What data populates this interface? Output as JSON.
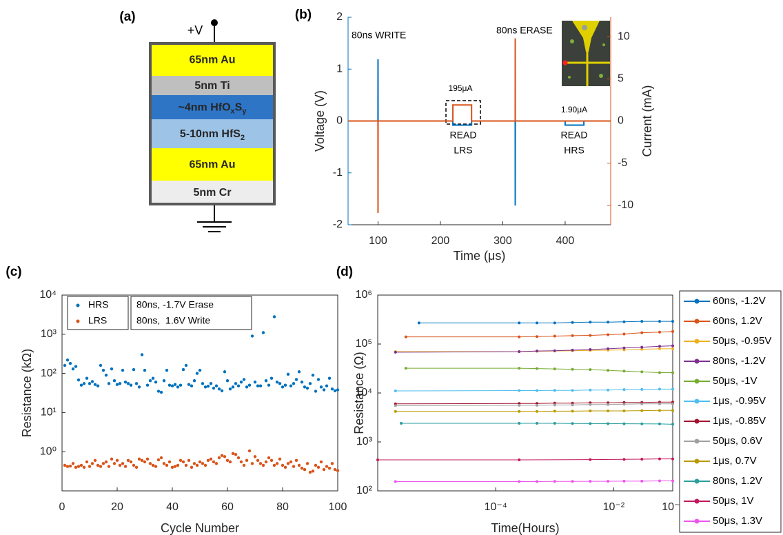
{
  "diagram": {
    "panel_label": "(a)",
    "terminal": "+V",
    "layers": [
      {
        "label": "65nm Au",
        "color": "#ffff00",
        "text_color": "#000000"
      },
      {
        "label": "5nm Ti",
        "color": "#bfbfbf",
        "text_color": "#000000"
      },
      {
        "label": [
          "~4nm HfO",
          "x",
          "S",
          "y"
        ],
        "color": "#2e75c6",
        "text_color": "#ffffff"
      },
      {
        "label": [
          "5-10nm HfS",
          "2"
        ],
        "color": "#9dc3e6",
        "text_color": "#000000"
      },
      {
        "label": "65nm Au",
        "color": "#ffff00",
        "text_color": "#000000"
      },
      {
        "label": "5nm Cr",
        "color": "#ededed",
        "text_color": "#000000"
      }
    ]
  },
  "chart_data": [
    {
      "type": "line",
      "panel_label": "(b)",
      "x_label": "Time (μs)",
      "y_label": "Voltage (V)",
      "y2_label": "Current (mA)",
      "xlim": [
        52,
        473
      ],
      "xticks": [
        100,
        200,
        300,
        400
      ],
      "ylim": [
        -2,
        2
      ],
      "yticks": [
        -2,
        -1,
        0,
        1,
        2
      ],
      "y2lim": [
        -12.3,
        12.3
      ],
      "y2ticks": [
        -10,
        -5,
        0,
        5,
        10
      ],
      "series": [
        {
          "color": "#0072bd",
          "axis": "y",
          "x": [
            52,
            99.9,
            100,
            100.1,
            220,
            220,
            250,
            250,
            319.9,
            320,
            320.1,
            400,
            400,
            430,
            430,
            473
          ],
          "values": [
            0,
            0,
            1.19,
            0,
            0,
            -0.08,
            -0.08,
            0,
            0,
            -1.63,
            0,
            0,
            -0.08,
            -0.08,
            0,
            0
          ]
        },
        {
          "color": "#d95319",
          "axis": "y2",
          "x": [
            52,
            99.9,
            100,
            100.1,
            220,
            220,
            250,
            250,
            319.9,
            320,
            320.1,
            473
          ],
          "values": [
            0,
            0,
            -10.9,
            0,
            0,
            1.9,
            1.9,
            0,
            0,
            9.8,
            0,
            0
          ]
        }
      ],
      "annotations": [
        "80ns WRITE",
        "80ns ERASE",
        "195μA",
        "READ",
        "LRS",
        "1.90μA",
        "READ",
        "HRS"
      ]
    },
    {
      "type": "scatter",
      "panel_label": "(c)",
      "x_label": "Cycle Number",
      "y_label": "Resistance (kΩ)",
      "xlim": [
        0,
        100
      ],
      "xticks": [
        0,
        20,
        40,
        60,
        80,
        100
      ],
      "ylog": true,
      "ylim": [
        0.1,
        10000
      ],
      "yticks": [
        {
          "value": 1,
          "label": "10⁰"
        },
        {
          "value": 10,
          "label": "10¹"
        },
        {
          "value": 100,
          "label": "10²"
        },
        {
          "value": 1000,
          "label": "10³"
        },
        {
          "value": 10000,
          "label": "10⁴"
        }
      ],
      "x": [
        1,
        2,
        3,
        4,
        5,
        6,
        7,
        8,
        9,
        10,
        11,
        12,
        13,
        14,
        15,
        16,
        17,
        18,
        19,
        20,
        21,
        22,
        23,
        24,
        25,
        26,
        27,
        28,
        29,
        30,
        31,
        32,
        33,
        34,
        35,
        36,
        37,
        38,
        39,
        40,
        41,
        42,
        43,
        44,
        45,
        46,
        47,
        48,
        49,
        50,
        51,
        52,
        53,
        54,
        55,
        56,
        57,
        58,
        59,
        60,
        61,
        62,
        63,
        64,
        65,
        66,
        67,
        68,
        69,
        70,
        71,
        72,
        73,
        74,
        75,
        76,
        77,
        78,
        79,
        80,
        81,
        82,
        83,
        84,
        85,
        86,
        87,
        88,
        89,
        90,
        91,
        92,
        93,
        94,
        95,
        96,
        97,
        98,
        99,
        100
      ],
      "series": [
        {
          "name": "HRS",
          "color": "#0072bd",
          "values": [
            160,
            220,
            180,
            130,
            150,
            68,
            50,
            55,
            75,
            55,
            62,
            52,
            48,
            160,
            120,
            90,
            55,
            130,
            65,
            52,
            55,
            120,
            60,
            55,
            50,
            125,
            55,
            45,
            300,
            120,
            50,
            65,
            75,
            60,
            35,
            33,
            65,
            120,
            50,
            48,
            52,
            45,
            50,
            125,
            160,
            52,
            48,
            65,
            100,
            120,
            55,
            45,
            47,
            55,
            42,
            48,
            40,
            36,
            110,
            65,
            40,
            45,
            55,
            48,
            60,
            70,
            45,
            50,
            900,
            60,
            48,
            48,
            1100,
            65,
            50,
            75,
            2800,
            60,
            55,
            45,
            50,
            95,
            48,
            55,
            70,
            110,
            60,
            45,
            42,
            55,
            90,
            35,
            70,
            45,
            38,
            48,
            75,
            40,
            36,
            38
          ]
        },
        {
          "name": "LRS",
          "color": "#d95319",
          "values": [
            0.45,
            0.42,
            0.43,
            0.5,
            0.4,
            0.42,
            0.45,
            0.4,
            0.55,
            0.42,
            0.5,
            0.6,
            0.45,
            0.42,
            0.5,
            0.55,
            0.42,
            0.65,
            0.5,
            0.6,
            0.45,
            0.5,
            0.42,
            0.6,
            0.55,
            0.45,
            0.4,
            0.65,
            0.6,
            0.55,
            0.65,
            0.5,
            0.45,
            0.42,
            0.62,
            0.7,
            0.5,
            0.45,
            0.55,
            0.4,
            0.42,
            0.45,
            0.6,
            0.55,
            0.45,
            0.6,
            0.4,
            0.5,
            0.45,
            0.55,
            0.5,
            0.45,
            0.6,
            0.65,
            0.55,
            0.5,
            0.7,
            0.8,
            0.75,
            0.6,
            0.55,
            0.9,
            0.85,
            0.7,
            0.55,
            0.45,
            0.6,
            1.05,
            0.5,
            0.75,
            0.6,
            0.5,
            0.45,
            0.55,
            0.7,
            0.6,
            0.45,
            0.5,
            0.65,
            0.45,
            0.4,
            0.5,
            0.55,
            0.42,
            0.6,
            0.45,
            0.38,
            0.35,
            0.5,
            0.3,
            0.32,
            0.45,
            0.4,
            0.55,
            0.35,
            0.42,
            0.38,
            0.5,
            0.35,
            0.33
          ]
        }
      ],
      "annotations": [
        "80ns, -1.7V Erase",
        "80ns,  1.6V Write"
      ]
    },
    {
      "type": "line",
      "panel_label": "(d)",
      "x_label": "Time(Hours)",
      "y_label": "Resistance (Ω)",
      "xlog": true,
      "xlim": [
        1e-06,
        0.1
      ],
      "xticks": [
        {
          "value": 0.0001,
          "label": "10⁻⁴"
        },
        {
          "value": 0.01,
          "label": "10⁻²"
        },
        {
          "value": 0.1,
          "label": "10⁻¹"
        }
      ],
      "ylog": true,
      "ylim": [
        100,
        1000000
      ],
      "yticks": [
        {
          "value": 100,
          "label": "10²"
        },
        {
          "value": 1000,
          "label": "10³"
        },
        {
          "value": 10000,
          "label": "10⁴"
        },
        {
          "value": 100000,
          "label": "10⁵"
        },
        {
          "value": 1000000,
          "label": "10⁶"
        }
      ],
      "series": [
        {
          "name": "60ns, -1.2V",
          "color": "#0072bd",
          "x": [
            5e-06,
            0.00025,
            0.0005,
            0.001,
            0.002,
            0.004,
            0.008,
            0.015,
            0.03,
            0.06,
            0.1
          ],
          "values": [
            270000,
            270000,
            270000,
            270000,
            275000,
            280000,
            280000,
            285000,
            290000,
            290000,
            290000
          ]
        },
        {
          "name": "60ns, 1.2V",
          "color": "#d95319",
          "x": [
            3e-06,
            0.00025,
            0.0005,
            0.001,
            0.002,
            0.004,
            0.008,
            0.015,
            0.03,
            0.06,
            0.1
          ],
          "values": [
            140000,
            140000,
            142000,
            145000,
            148000,
            150000,
            155000,
            160000,
            170000,
            175000,
            180000
          ]
        },
        {
          "name": "50μs, -0.95V",
          "color": "#edb120",
          "x": [
            2e-06,
            0.00025,
            0.0005,
            0.001,
            0.002,
            0.004,
            0.008,
            0.015,
            0.03,
            0.06,
            0.1
          ],
          "values": [
            70000,
            70000,
            71000,
            72000,
            73000,
            74000,
            75000,
            76000,
            78000,
            80000,
            80000
          ]
        },
        {
          "name": "80ns, -1.2V",
          "color": "#7e2f8e",
          "x": [
            2e-06,
            0.00025,
            0.0005,
            0.001,
            0.002,
            0.004,
            0.008,
            0.015,
            0.03,
            0.06,
            0.1
          ],
          "values": [
            68000,
            70000,
            72000,
            73000,
            75000,
            77000,
            80000,
            83000,
            86000,
            90000,
            92000
          ]
        },
        {
          "name": "50μs, -1V",
          "color": "#77ac30",
          "x": [
            3e-06,
            0.00025,
            0.0005,
            0.001,
            0.002,
            0.004,
            0.008,
            0.015,
            0.03,
            0.06,
            0.1
          ],
          "values": [
            32000,
            32000,
            31500,
            31000,
            30500,
            30000,
            29000,
            28000,
            27000,
            26000,
            26000
          ]
        },
        {
          "name": "1μs, -0.95V",
          "color": "#4dbeee",
          "x": [
            2e-06,
            0.00025,
            0.0005,
            0.001,
            0.002,
            0.004,
            0.008,
            0.015,
            0.03,
            0.06,
            0.1
          ],
          "values": [
            11000,
            11200,
            11200,
            11300,
            11300,
            11500,
            11500,
            11700,
            11800,
            12000,
            12000
          ]
        },
        {
          "name": "1μs, -0.85V",
          "color": "#a2142f",
          "x": [
            2e-06,
            0.00025,
            0.0005,
            0.001,
            0.002,
            0.004,
            0.008,
            0.015,
            0.03,
            0.06,
            0.1
          ],
          "values": [
            6000,
            6100,
            6100,
            6200,
            6200,
            6300,
            6300,
            6400,
            6400,
            6500,
            6500
          ]
        },
        {
          "name": "50μs, 0.6V",
          "color": "#a0a0a0",
          "x": [
            2e-06,
            0.00025,
            0.0005,
            0.001,
            0.002,
            0.004,
            0.008,
            0.015,
            0.03,
            0.06,
            0.1
          ],
          "values": [
            5500,
            5600,
            5600,
            5700,
            5700,
            5800,
            5800,
            5900,
            6000,
            6000,
            6000
          ]
        },
        {
          "name": "1μs, 0.7V",
          "color": "#b89a00",
          "x": [
            2e-06,
            0.00025,
            0.0005,
            0.001,
            0.002,
            0.004,
            0.008,
            0.015,
            0.03,
            0.06,
            0.1
          ],
          "values": [
            4200,
            4200,
            4200,
            4250,
            4250,
            4300,
            4300,
            4300,
            4350,
            4400,
            4400
          ]
        },
        {
          "name": "80ns, 1.2V",
          "color": "#2a9d9d",
          "x": [
            2.5e-06,
            0.00025,
            0.0005,
            0.001,
            0.002,
            0.004,
            0.008,
            0.015,
            0.03,
            0.06,
            0.1
          ],
          "values": [
            2400,
            2400,
            2400,
            2400,
            2380,
            2370,
            2360,
            2350,
            2340,
            2330,
            2300
          ]
        },
        {
          "name": "50μs, 1V",
          "color": "#c2185b",
          "x": [
            1e-06,
            0.00025,
            0.004,
            0.015,
            0.03,
            0.06,
            0.1
          ],
          "values": [
            430,
            430,
            435,
            440,
            445,
            450,
            450
          ]
        },
        {
          "name": "50μs, 1.3V",
          "color": "#ee55ee",
          "x": [
            2e-06,
            0.00025,
            0.0005,
            0.001,
            0.002,
            0.004,
            0.008,
            0.015,
            0.03,
            0.06,
            0.1
          ],
          "values": [
            155,
            155,
            155,
            156,
            156,
            157,
            157,
            158,
            158,
            160,
            160
          ]
        }
      ]
    }
  ]
}
